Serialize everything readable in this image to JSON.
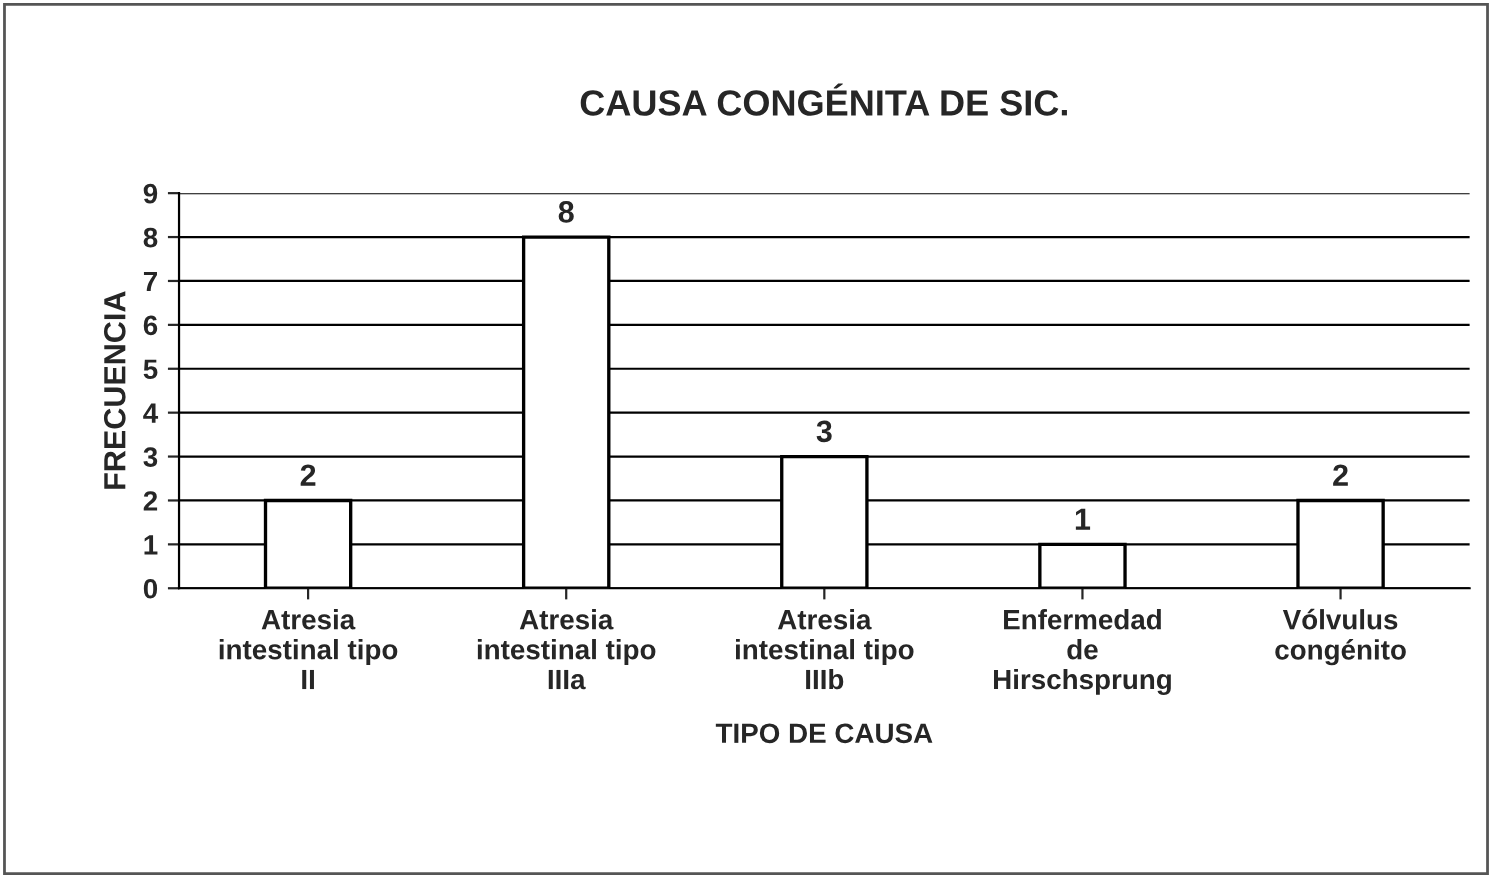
{
  "chart_data": {
    "type": "bar",
    "title": "CAUSA CONGÉNITA DE SIC.",
    "xlabel": "TIPO DE CAUSA",
    "ylabel": "FRECUENCIA",
    "categories": [
      "Atresia\nintestinal tipo\nII",
      "Atresia\nintestinal tipo\nIIIa",
      "Atresia\nintestinal tipo\nIIIb",
      "Enfermedad\nde\nHirschsprung",
      "Vólvulus\ncongénito"
    ],
    "values": [
      2,
      8,
      3,
      1,
      2
    ],
    "color": "#ffffff",
    "ylim": [
      0,
      9
    ],
    "yticks": [
      0,
      1,
      2,
      3,
      4,
      5,
      6,
      7,
      8,
      9
    ],
    "grid": "y",
    "data_labels": true
  }
}
